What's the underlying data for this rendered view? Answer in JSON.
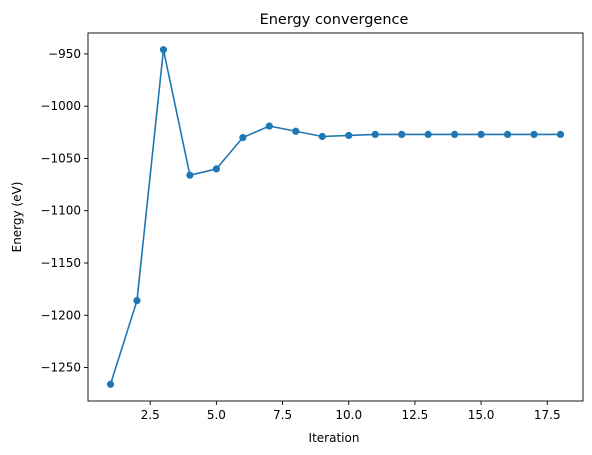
{
  "chart_data": {
    "type": "line",
    "title": "Energy convergence",
    "xlabel": "Iteration",
    "ylabel": "Energy (eV)",
    "x": [
      1,
      2,
      3,
      4,
      5,
      6,
      7,
      8,
      9,
      10,
      11,
      12,
      13,
      14,
      15,
      16,
      17,
      18
    ],
    "series": [
      {
        "values": [
          -1266,
          -1186,
          -946,
          -1066,
          -1060,
          -1030,
          -1019,
          -1024,
          -1029,
          -1028,
          -1027,
          -1027,
          -1027,
          -1027,
          -1027,
          -1027,
          -1027,
          -1027
        ],
        "color": "#1f77b4",
        "marker": "circle"
      }
    ],
    "xlim": [
      0.15,
      18.85
    ],
    "ylim": [
      -1282,
      -930
    ],
    "xticks": [
      2.5,
      5.0,
      7.5,
      10.0,
      12.5,
      15.0,
      17.5
    ],
    "xtick_labels": [
      "2.5",
      "5.0",
      "7.5",
      "10.0",
      "12.5",
      "15.0",
      "17.5"
    ],
    "yticks": [
      -950,
      -1000,
      -1050,
      -1100,
      -1150,
      -1200,
      -1250
    ],
    "ytick_labels": [
      "−950",
      "−1000",
      "−1050",
      "−1100",
      "−1150",
      "−1200",
      "−1250"
    ],
    "grid": false
  }
}
